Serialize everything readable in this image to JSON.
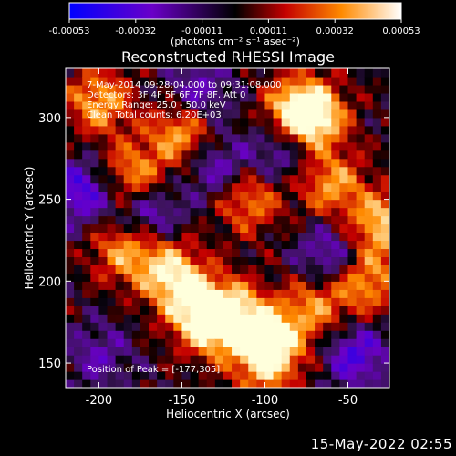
{
  "colorbar": {
    "tick_labels": [
      "-0.00053",
      "-0.00032",
      "-0.00011",
      "0.00011",
      "0.00032",
      "0.00053"
    ],
    "units": "(photons cm⁻² s⁻¹ asec⁻²)",
    "colors": [
      "#0000ff",
      "#6a00c8",
      "#000000",
      "#c40000",
      "#ff8a00",
      "#ffffff"
    ]
  },
  "chart_data": {
    "type": "heatmap",
    "title": "Reconstructed RHESSI Image",
    "xlabel": "Heliocentric X (arcsec)",
    "ylabel": "Heliocentric Y (arcsec)",
    "xlim": [
      -220,
      -25
    ],
    "ylim": [
      135,
      330
    ],
    "xticks": [
      -200,
      -150,
      -100,
      -50
    ],
    "yticks": [
      150,
      200,
      250,
      300
    ],
    "annotations": [
      "7-May-2014 09:28:04.000 to 09:31:08.000",
      "Detectors: 3F 4F 5F 6F 7F 8F, Att 0",
      "Energy Range: 25.0 - 50.0 keV",
      "Clean     Total counts: 6.20E+03"
    ],
    "peak_label": "Position of Peak = [-177,305]",
    "peak": [
      -177,
      305
    ],
    "colorscale_range": [
      -0.00053,
      0.00053
    ],
    "hot_spots": [
      {
        "x": -120,
        "y": 180,
        "intensity": 0.95
      },
      {
        "x": -135,
        "y": 175,
        "intensity": 0.85
      },
      {
        "x": -95,
        "y": 165,
        "intensity": 0.8
      },
      {
        "x": -100,
        "y": 150,
        "intensity": 0.7
      },
      {
        "x": -80,
        "y": 305,
        "intensity": 0.9
      },
      {
        "x": -70,
        "y": 300,
        "intensity": 0.8
      },
      {
        "x": -30,
        "y": 235,
        "intensity": 0.85
      },
      {
        "x": -150,
        "y": 290,
        "intensity": 0.8
      },
      {
        "x": -180,
        "y": 265,
        "intensity": 0.7
      },
      {
        "x": -200,
        "y": 310,
        "intensity": 0.75
      },
      {
        "x": -185,
        "y": 220,
        "intensity": 0.7
      },
      {
        "x": -160,
        "y": 210,
        "intensity": 0.6
      },
      {
        "x": -110,
        "y": 250,
        "intensity": 0.65
      },
      {
        "x": -60,
        "y": 260,
        "intensity": 0.7
      },
      {
        "x": -40,
        "y": 200,
        "intensity": 0.75
      },
      {
        "x": -70,
        "y": 185,
        "intensity": 0.6
      },
      {
        "x": -150,
        "y": 195,
        "intensity": 0.65
      }
    ],
    "cold_spots": [
      {
        "x": -210,
        "y": 255,
        "intensity": -0.7
      },
      {
        "x": -170,
        "y": 240,
        "intensity": -0.6
      },
      {
        "x": -140,
        "y": 315,
        "intensity": -0.5
      },
      {
        "x": -60,
        "y": 215,
        "intensity": -0.6
      },
      {
        "x": -90,
        "y": 280,
        "intensity": -0.5
      },
      {
        "x": -45,
        "y": 155,
        "intensity": -0.65
      },
      {
        "x": -200,
        "y": 155,
        "intensity": -0.4
      },
      {
        "x": -130,
        "y": 270,
        "intensity": -0.55
      }
    ]
  },
  "footer": {
    "date": "15-May-2022 02:55"
  }
}
